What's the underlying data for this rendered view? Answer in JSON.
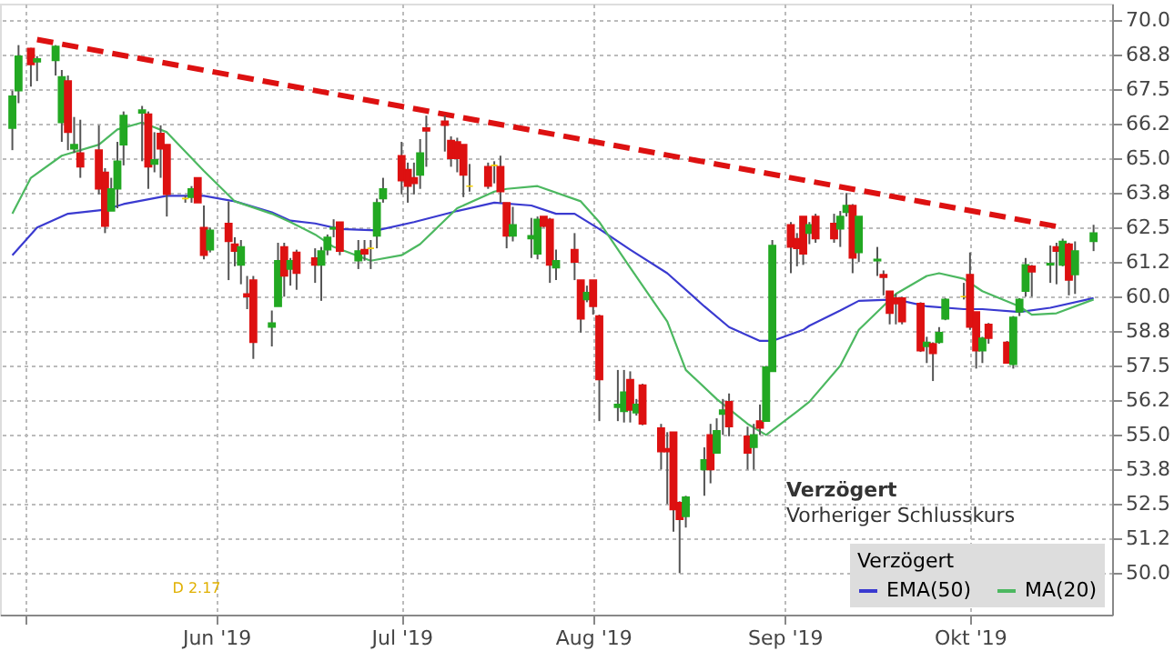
{
  "chart_data": {
    "type": "candlestick",
    "x": [
      "2019-04-29",
      "2019-04-30",
      "2019-05-02",
      "2019-05-03",
      "2019-05-06",
      "2019-05-07",
      "2019-05-08",
      "2019-05-09",
      "2019-05-10",
      "2019-05-13",
      "2019-05-14",
      "2019-05-15",
      "2019-05-16",
      "2019-05-17",
      "2019-05-20",
      "2019-05-21",
      "2019-05-22",
      "2019-05-23",
      "2019-05-24",
      "2019-05-27",
      "2019-05-28",
      "2019-05-29",
      "2019-05-30",
      "2019-05-31",
      "2019-06-03",
      "2019-06-04",
      "2019-06-05",
      "2019-06-06",
      "2019-06-07",
      "2019-06-10",
      "2019-06-11",
      "2019-06-12",
      "2019-06-13",
      "2019-06-14",
      "2019-06-17",
      "2019-06-18",
      "2019-06-19",
      "2019-06-20",
      "2019-06-21",
      "2019-06-24",
      "2019-06-25",
      "2019-06-26",
      "2019-06-27",
      "2019-06-28",
      "2019-07-01",
      "2019-07-02",
      "2019-07-03",
      "2019-07-04",
      "2019-07-05",
      "2019-07-08",
      "2019-07-09",
      "2019-07-10",
      "2019-07-11",
      "2019-07-12",
      "2019-07-15",
      "2019-07-16",
      "2019-07-17",
      "2019-07-18",
      "2019-07-19",
      "2019-07-22",
      "2019-07-23",
      "2019-07-24",
      "2019-07-25",
      "2019-07-26",
      "2019-07-29",
      "2019-07-30",
      "2019-07-31",
      "2019-08-01",
      "2019-08-02",
      "2019-08-05",
      "2019-08-06",
      "2019-08-07",
      "2019-08-08",
      "2019-08-09",
      "2019-08-12",
      "2019-08-13",
      "2019-08-14",
      "2019-08-15",
      "2019-08-16",
      "2019-08-19",
      "2019-08-20",
      "2019-08-21",
      "2019-08-22",
      "2019-08-23",
      "2019-08-26",
      "2019-08-27",
      "2019-08-28",
      "2019-08-29",
      "2019-08-30",
      "2019-09-02",
      "2019-09-03",
      "2019-09-04",
      "2019-09-05",
      "2019-09-06",
      "2019-09-09",
      "2019-09-10",
      "2019-09-11",
      "2019-09-12",
      "2019-09-13",
      "2019-09-16",
      "2019-09-17",
      "2019-09-18",
      "2019-09-19",
      "2019-09-20",
      "2019-09-23",
      "2019-09-24",
      "2019-09-25",
      "2019-09-26",
      "2019-09-27",
      "2019-09-30",
      "2019-10-01",
      "2019-10-02",
      "2019-10-03",
      "2019-10-04",
      "2019-10-07",
      "2019-10-08",
      "2019-10-09",
      "2019-10-10",
      "2019-10-11",
      "2019-10-14",
      "2019-10-15",
      "2019-10-16",
      "2019-10-17",
      "2019-10-18",
      "2019-10-21"
    ],
    "ohlc": [
      [
        66.1,
        67.45,
        65.3,
        67.25
      ],
      [
        67.45,
        69.1,
        67.0,
        68.7
      ],
      [
        68.98,
        69.0,
        67.6,
        68.4
      ],
      [
        68.5,
        68.7,
        67.8,
        68.6
      ],
      [
        68.55,
        69.1,
        68.0,
        69.05
      ],
      [
        66.3,
        68.2,
        65.6,
        67.95
      ],
      [
        67.8,
        68.0,
        65.3,
        65.95
      ],
      [
        65.35,
        66.5,
        65.2,
        65.5
      ],
      [
        65.2,
        66.4,
        64.3,
        64.7
      ],
      [
        65.3,
        66.2,
        63.7,
        63.9
      ],
      [
        64.5,
        64.65,
        62.3,
        62.55
      ],
      [
        63.1,
        64.3,
        63.1,
        63.9
      ],
      [
        63.9,
        65.6,
        63.2,
        64.9
      ],
      [
        65.5,
        66.7,
        64.75,
        66.55
      ],
      [
        66.65,
        66.9,
        64.9,
        66.75
      ],
      [
        66.6,
        66.7,
        63.9,
        64.7
      ],
      [
        64.8,
        65.95,
        64.5,
        64.95
      ],
      [
        65.9,
        66.2,
        64.3,
        65.35
      ],
      [
        65.5,
        65.5,
        62.9,
        63.7
      ],
      [
        63.55,
        63.65,
        63.4,
        63.55
      ],
      [
        63.6,
        64.0,
        63.4,
        63.9
      ],
      [
        64.3,
        64.3,
        63.4,
        63.4
      ],
      [
        62.5,
        63.3,
        61.35,
        61.5
      ],
      [
        61.7,
        62.5,
        61.6,
        62.4
      ],
      [
        62.65,
        63.45,
        60.6,
        62.0
      ],
      [
        61.9,
        62.15,
        61.1,
        61.65
      ],
      [
        61.15,
        62.05,
        60.45,
        61.8
      ],
      [
        60.1,
        60.75,
        59.55,
        60.0
      ],
      [
        60.6,
        60.75,
        57.75,
        58.35
      ],
      [
        58.9,
        59.5,
        58.2,
        59.05
      ],
      [
        59.65,
        61.95,
        59.65,
        61.3
      ],
      [
        61.8,
        61.95,
        60.0,
        60.75
      ],
      [
        61.0,
        61.4,
        60.4,
        61.3
      ],
      [
        61.6,
        61.7,
        60.25,
        60.85
      ],
      [
        61.4,
        61.75,
        60.5,
        61.15
      ],
      [
        61.15,
        61.8,
        59.85,
        61.65
      ],
      [
        61.7,
        62.25,
        61.5,
        62.15
      ],
      [
        62.45,
        62.8,
        62.15,
        62.5
      ],
      [
        62.7,
        62.7,
        61.5,
        61.65
      ],
      [
        61.3,
        62.05,
        61.0,
        61.65
      ],
      [
        61.7,
        62.05,
        61.3,
        61.55
      ],
      [
        61.75,
        62.05,
        61.0,
        61.75
      ],
      [
        62.2,
        63.55,
        61.75,
        63.4
      ],
      [
        63.55,
        64.3,
        63.4,
        63.9
      ],
      [
        65.1,
        65.6,
        63.7,
        64.2
      ],
      [
        64.6,
        64.85,
        63.4,
        64.0
      ],
      [
        64.3,
        64.85,
        63.7,
        64.1
      ],
      [
        64.4,
        65.7,
        63.9,
        65.2
      ],
      [
        66.1,
        66.55,
        64.7,
        66.0
      ],
      [
        66.35,
        66.55,
        65.25,
        66.2
      ],
      [
        65.65,
        65.8,
        64.7,
        65.0
      ],
      [
        65.6,
        65.75,
        64.5,
        65.0
      ],
      [
        65.5,
        65.5,
        63.6,
        64.4
      ],
      [
        64.0,
        64.8,
        63.8,
        64.0
      ],
      [
        64.7,
        64.85,
        63.9,
        64.0
      ],
      [
        64.75,
        64.9,
        64.1,
        64.75
      ],
      [
        64.7,
        65.1,
        63.4,
        63.8
      ],
      [
        63.4,
        63.4,
        61.75,
        62.2
      ],
      [
        62.2,
        63.25,
        62.0,
        62.6
      ],
      [
        62.1,
        62.85,
        61.4,
        62.2
      ],
      [
        61.55,
        62.9,
        61.35,
        62.8
      ],
      [
        62.9,
        62.9,
        62.5,
        62.55
      ],
      [
        62.8,
        62.85,
        60.5,
        61.15
      ],
      [
        61.05,
        61.7,
        60.6,
        61.3
      ],
      [
        61.7,
        62.3,
        60.6,
        61.25
      ],
      [
        60.6,
        60.6,
        58.7,
        59.2
      ],
      [
        59.9,
        60.4,
        59.8,
        60.15
      ],
      [
        60.6,
        60.6,
        59.35,
        59.65
      ],
      [
        59.3,
        59.35,
        55.5,
        57.0
      ],
      [
        56.0,
        57.35,
        55.5,
        56.1
      ],
      [
        55.85,
        57.35,
        55.45,
        56.55
      ],
      [
        57.0,
        57.3,
        55.45,
        55.9
      ],
      [
        55.8,
        56.3,
        55.7,
        56.1
      ],
      [
        56.8,
        56.85,
        55.35,
        55.4
      ],
      [
        55.25,
        55.4,
        53.75,
        54.4
      ],
      [
        54.5,
        55.1,
        52.5,
        54.4
      ],
      [
        55.1,
        55.1,
        51.5,
        52.3
      ],
      [
        52.55,
        52.6,
        50.0,
        51.95
      ],
      [
        52.05,
        52.8,
        51.65,
        52.75
      ],
      [
        53.75,
        54.55,
        52.8,
        54.1
      ],
      [
        55.0,
        55.4,
        53.25,
        53.75
      ],
      [
        54.35,
        55.6,
        54.35,
        55.15
      ],
      [
        55.75,
        56.3,
        55.0,
        55.9
      ],
      [
        56.2,
        56.5,
        54.95,
        55.3
      ],
      [
        54.95,
        55.3,
        53.75,
        54.35
      ],
      [
        54.55,
        55.4,
        53.75,
        55.0
      ],
      [
        55.5,
        56.1,
        55.0,
        55.25
      ],
      [
        55.5,
        57.5,
        55.5,
        57.45
      ],
      [
        57.3,
        62.05,
        57.3,
        61.85
      ],
      [
        62.6,
        62.7,
        60.85,
        61.8
      ],
      [
        62.1,
        62.3,
        61.1,
        61.75
      ],
      [
        62.9,
        62.9,
        61.15,
        61.55
      ],
      [
        62.3,
        62.7,
        61.9,
        62.6
      ],
      [
        62.9,
        63.0,
        61.95,
        62.1
      ],
      [
        62.65,
        63.0,
        61.95,
        62.1
      ],
      [
        62.45,
        63.1,
        61.8,
        62.9
      ],
      [
        63.05,
        63.75,
        62.9,
        63.3
      ],
      [
        63.3,
        63.35,
        60.85,
        61.4
      ],
      [
        61.6,
        62.9,
        61.25,
        62.9
      ],
      [
        61.3,
        61.8,
        60.75,
        61.35
      ],
      [
        60.8,
        60.95,
        60.05,
        60.7
      ],
      [
        60.2,
        60.2,
        59.0,
        59.4
      ],
      [
        59.95,
        60.1,
        59.0,
        59.75
      ],
      [
        59.95,
        60.0,
        59.0,
        59.1
      ],
      [
        59.75,
        59.8,
        58.0,
        58.05
      ],
      [
        58.2,
        58.55,
        57.6,
        58.35
      ],
      [
        58.3,
        58.35,
        56.95,
        57.95
      ],
      [
        58.35,
        58.9,
        58.3,
        58.7
      ],
      [
        59.2,
        59.95,
        59.15,
        59.9
      ],
      [
        60.0,
        60.5,
        59.9,
        60.0
      ],
      [
        60.8,
        61.6,
        58.8,
        58.9
      ],
      [
        59.45,
        59.45,
        57.4,
        58.05
      ],
      [
        58.05,
        58.55,
        57.6,
        58.5
      ],
      [
        59.0,
        59.05,
        58.3,
        58.5
      ],
      [
        58.35,
        58.4,
        57.6,
        57.6
      ],
      [
        57.55,
        59.3,
        57.4,
        59.25
      ],
      [
        59.45,
        59.95,
        59.3,
        59.9
      ],
      [
        60.2,
        61.4,
        60.0,
        61.15
      ],
      [
        61.1,
        61.15,
        60.0,
        60.9
      ],
      [
        61.15,
        61.85,
        60.5,
        61.2
      ],
      [
        61.8,
        61.95,
        60.45,
        61.65
      ],
      [
        61.15,
        62.1,
        61.1,
        62.0
      ],
      [
        61.9,
        61.95,
        60.05,
        60.6
      ],
      [
        60.8,
        62.0,
        60.1,
        61.65
      ],
      [
        62.0,
        62.6,
        61.65,
        62.3
      ]
    ],
    "colors": [
      "#22a822",
      "#22a822",
      "#dd1111",
      "#22a822",
      "#22a822",
      "#22a822",
      "#dd1111",
      "#22a822",
      "#dd1111",
      "#dd1111",
      "#dd1111",
      "#22a822",
      "#22a822",
      "#22a822",
      "#22a822",
      "#dd1111",
      "#22a822",
      "#dd1111",
      "#dd1111",
      "#f5d000",
      "#22a822",
      "#dd1111",
      "#dd1111",
      "#22a822",
      "#dd1111",
      "#dd1111",
      "#22a822",
      "#dd1111",
      "#dd1111",
      "#22a822",
      "#22a822",
      "#dd1111",
      "#22a822",
      "#dd1111",
      "#dd1111",
      "#22a822",
      "#22a822",
      "#22a822",
      "#dd1111",
      "#22a822",
      "#dd1111",
      "#f5d000",
      "#22a822",
      "#22a822",
      "#dd1111",
      "#dd1111",
      "#dd1111",
      "#22a822",
      "#dd1111",
      "#dd1111",
      "#dd1111",
      "#dd1111",
      "#dd1111",
      "#f5d000",
      "#dd1111",
      "#f5d000",
      "#dd1111",
      "#dd1111",
      "#22a822",
      "#22a822",
      "#22a822",
      "#dd1111",
      "#dd1111",
      "#22a822",
      "#dd1111",
      "#dd1111",
      "#22a822",
      "#dd1111",
      "#dd1111",
      "#22a822",
      "#22a822",
      "#dd1111",
      "#22a822",
      "#dd1111",
      "#dd1111",
      "#dd1111",
      "#dd1111",
      "#dd1111",
      "#22a822",
      "#22a822",
      "#dd1111",
      "#22a822",
      "#22a822",
      "#dd1111",
      "#dd1111",
      "#22a822",
      "#dd1111",
      "#22a822",
      "#22a822",
      "#dd1111",
      "#dd1111",
      "#dd1111",
      "#22a822",
      "#dd1111",
      "#dd1111",
      "#22a822",
      "#22a822",
      "#dd1111",
      "#22a822",
      "#22a822",
      "#dd1111",
      "#dd1111",
      "#dd1111",
      "#dd1111",
      "#dd1111",
      "#22a822",
      "#dd1111",
      "#22a822",
      "#22a822",
      "#f5d000",
      "#dd1111",
      "#dd1111",
      "#22a822",
      "#dd1111",
      "#dd1111",
      "#22a822",
      "#22a822",
      "#22a822",
      "#dd1111",
      "#22a822",
      "#dd1111",
      "#22a822",
      "#dd1111",
      "#22a822",
      "#22a822"
    ],
    "series": [
      {
        "type": "line",
        "name": "EMA(50)",
        "color": "#3a3ad0",
        "x": [
          "2019-04-29",
          "2019-05-03",
          "2019-05-08",
          "2019-05-14",
          "2019-05-17",
          "2019-05-24",
          "2019-05-30",
          "2019-06-04",
          "2019-06-10",
          "2019-06-13",
          "2019-06-17",
          "2019-06-21",
          "2019-06-27",
          "2019-07-03",
          "2019-07-10",
          "2019-07-16",
          "2019-07-22",
          "2019-07-26",
          "2019-07-29",
          "2019-08-02",
          "2019-08-07",
          "2019-08-13",
          "2019-08-19",
          "2019-08-23",
          "2019-08-28",
          "2019-08-30",
          "2019-09-04",
          "2019-09-05",
          "2019-09-10",
          "2019-09-13",
          "2019-09-19",
          "2019-09-24",
          "2019-09-30",
          "2019-10-03",
          "2019-10-09",
          "2019-10-14",
          "2019-10-21"
        ],
        "values": [
          61.5,
          62.5,
          63.0,
          63.15,
          63.35,
          63.65,
          63.65,
          63.45,
          63.05,
          62.75,
          62.65,
          62.45,
          62.4,
          62.7,
          63.1,
          63.4,
          63.3,
          63.0,
          63.0,
          62.45,
          61.7,
          60.85,
          59.65,
          58.9,
          58.4,
          58.4,
          58.8,
          58.95,
          59.5,
          59.85,
          59.9,
          59.65,
          59.55,
          59.55,
          59.45,
          59.6,
          59.95
        ]
      },
      {
        "type": "line",
        "name": "MA(20)",
        "color": "#4cb860",
        "x": [
          "2019-04-29",
          "2019-05-02",
          "2019-05-07",
          "2019-05-13",
          "2019-05-16",
          "2019-05-20",
          "2019-05-24",
          "2019-05-30",
          "2019-06-04",
          "2019-06-10",
          "2019-06-13",
          "2019-06-17",
          "2019-06-20",
          "2019-06-26",
          "2019-07-01",
          "2019-07-04",
          "2019-07-10",
          "2019-07-16",
          "2019-07-18",
          "2019-07-23",
          "2019-07-30",
          "2019-08-02",
          "2019-08-07",
          "2019-08-13",
          "2019-08-16",
          "2019-08-21",
          "2019-08-26",
          "2019-08-29",
          "2019-09-03",
          "2019-09-05",
          "2019-09-10",
          "2019-09-13",
          "2019-09-19",
          "2019-09-24",
          "2019-09-26",
          "2019-09-30",
          "2019-10-03",
          "2019-10-09",
          "2019-10-11",
          "2019-10-15",
          "2019-10-21"
        ],
        "values": [
          63.0,
          64.3,
          65.1,
          65.5,
          66.05,
          66.3,
          65.95,
          64.55,
          63.45,
          63.0,
          62.7,
          62.25,
          61.8,
          61.3,
          61.5,
          61.9,
          63.2,
          63.8,
          63.9,
          64.0,
          63.45,
          62.7,
          61.05,
          59.1,
          57.35,
          56.3,
          55.4,
          55.0,
          55.85,
          56.2,
          57.5,
          58.8,
          60.1,
          60.75,
          60.85,
          60.65,
          60.2,
          59.65,
          59.35,
          59.4,
          59.9
        ]
      },
      {
        "type": "line",
        "color": "#dd1111",
        "line_style": "dashed",
        "x": [
          "2019-05-03",
          "2019-10-16"
        ],
        "values": [
          69.3,
          62.5
        ]
      }
    ],
    "xlim": [
      "2019-04-27",
      "2019-10-24"
    ],
    "xticks": [
      {
        "value": "2019-05-01",
        "label": null
      },
      {
        "value": "2019-06-01",
        "label": "Jun '19"
      },
      {
        "value": "2019-07-01",
        "label": "Jul '19"
      },
      {
        "value": "2019-08-01",
        "label": "Aug '19"
      },
      {
        "value": "2019-09-01",
        "label": "Sep '19"
      },
      {
        "value": "2019-10-01",
        "label": "Okt '19"
      }
    ],
    "ylim": [
      48.5,
      70.6
    ],
    "yticks": [
      {
        "value": 50,
        "label": "50.0"
      },
      {
        "value": 51.25,
        "label": "51.2"
      },
      {
        "value": 52.5,
        "label": "52.5"
      },
      {
        "value": 53.75,
        "label": "53.8"
      },
      {
        "value": 55,
        "label": "55.0"
      },
      {
        "value": 56.25,
        "label": "56.2"
      },
      {
        "value": 57.5,
        "label": "57.5"
      },
      {
        "value": 58.75,
        "label": "58.8"
      },
      {
        "value": 60,
        "label": "60.0"
      },
      {
        "value": 61.25,
        "label": "61.2"
      },
      {
        "value": 62.5,
        "label": "62.5"
      },
      {
        "value": 63.75,
        "label": "63.8"
      },
      {
        "value": 65,
        "label": "65.0"
      },
      {
        "value": 66.25,
        "label": "66.2"
      },
      {
        "value": 67.5,
        "label": "67.5"
      },
      {
        "value": 68.75,
        "label": "68.8"
      },
      {
        "value": 70,
        "label": "70.0"
      }
    ],
    "grid": true,
    "legend": "bottom right",
    "legend_title": "Verzögert",
    "annotations": [
      "Verzögert",
      "Vorheriger Schlusskurs",
      "D 2.17"
    ]
  }
}
